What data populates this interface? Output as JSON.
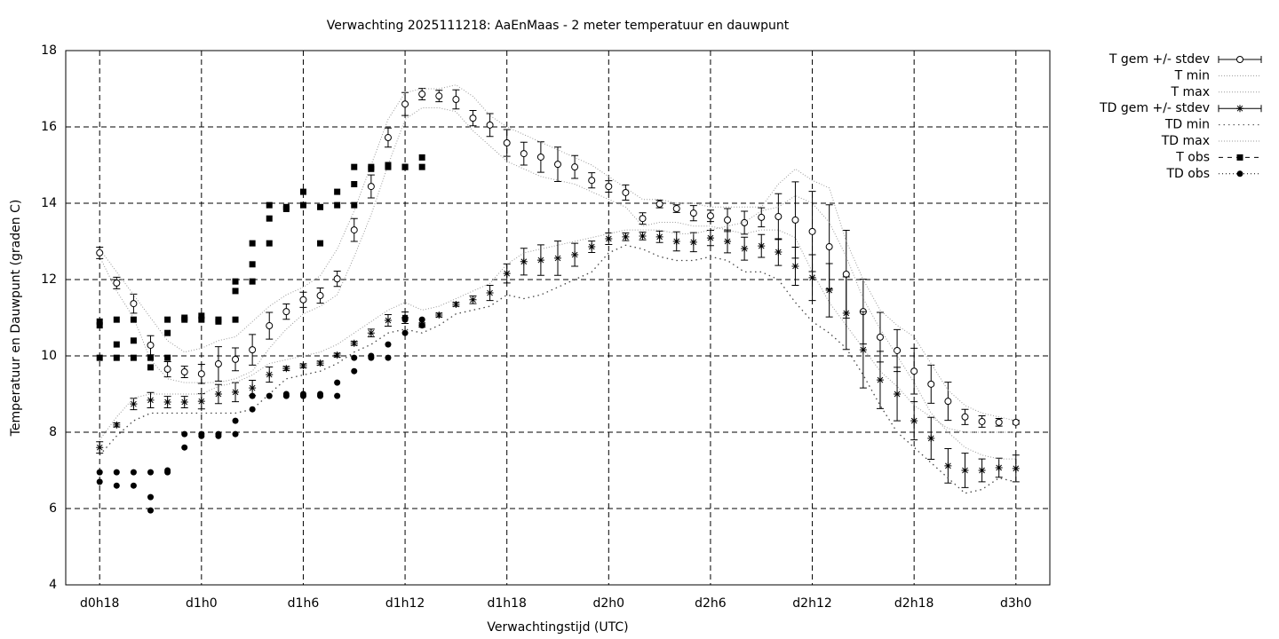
{
  "chart_data": {
    "type": "line",
    "title": "Verwachting 2025111218: AaEnMaas - 2 meter temperatuur en dauwpunt",
    "x_label": "Verwachtingstijd (UTC)",
    "y_label": "Temperatuur en Dauwpunt (graden C)",
    "xlim": [
      16,
      74
    ],
    "ylim": [
      4,
      18
    ],
    "xticks": [
      {
        "value": 18,
        "label": "d0h18"
      },
      {
        "value": 24,
        "label": "d1h0"
      },
      {
        "value": 30,
        "label": "d1h6"
      },
      {
        "value": 36,
        "label": "d1h12"
      },
      {
        "value": 42,
        "label": "d1h18"
      },
      {
        "value": 48,
        "label": "d2h0"
      },
      {
        "value": 54,
        "label": "d2h6"
      },
      {
        "value": 60,
        "label": "d2h12"
      },
      {
        "value": 66,
        "label": "d2h18"
      },
      {
        "value": 72,
        "label": "d3h0"
      }
    ],
    "yticks": [
      4,
      6,
      8,
      10,
      12,
      14,
      16,
      18
    ],
    "grid": true,
    "x": [
      18,
      19,
      20,
      21,
      22,
      23,
      24,
      25,
      26,
      27,
      28,
      29,
      30,
      31,
      32,
      33,
      34,
      35,
      36,
      37,
      38,
      39,
      40,
      41,
      42,
      43,
      44,
      45,
      46,
      47,
      48,
      49,
      50,
      51,
      52,
      53,
      54,
      55,
      56,
      57,
      58,
      59,
      60,
      61,
      62,
      63,
      64,
      65,
      66,
      67,
      68,
      69,
      70,
      71,
      72
    ],
    "series": [
      {
        "name": "T gem +/- stdev",
        "color": "#000000",
        "style": "errorbar-circle",
        "values": [
          12.7,
          11.91,
          11.37,
          10.28,
          9.65,
          9.58,
          9.53,
          9.79,
          9.91,
          10.16,
          10.79,
          11.16,
          11.47,
          11.58,
          12.02,
          13.3,
          14.44,
          15.72,
          16.6,
          16.86,
          16.81,
          16.72,
          16.23,
          16.05,
          15.58,
          15.3,
          15.21,
          15.02,
          14.95,
          14.6,
          14.44,
          14.28,
          13.6,
          13.98,
          13.86,
          13.74,
          13.67,
          13.56,
          13.49,
          13.63,
          13.65,
          13.56,
          13.26,
          12.86,
          12.14,
          11.16,
          10.49,
          10.14,
          9.6,
          9.26,
          8.81,
          8.4,
          8.28,
          8.26,
          8.26
        ],
        "errors": [
          0.15,
          0.15,
          0.25,
          0.25,
          0.2,
          0.15,
          0.25,
          0.45,
          0.3,
          0.4,
          0.35,
          0.2,
          0.2,
          0.2,
          0.2,
          0.3,
          0.3,
          0.25,
          0.3,
          0.15,
          0.15,
          0.25,
          0.2,
          0.3,
          0.35,
          0.3,
          0.4,
          0.45,
          0.3,
          0.2,
          0.15,
          0.2,
          0.15,
          0.1,
          0.1,
          0.2,
          0.15,
          0.3,
          0.3,
          0.25,
          0.6,
          1.0,
          1.05,
          1.1,
          1.15,
          0.85,
          0.65,
          0.55,
          0.6,
          0.5,
          0.5,
          0.2,
          0.15,
          0.1,
          0.05
        ]
      },
      {
        "name": "T min",
        "color": "#999999",
        "style": "dotted",
        "values": [
          12.6,
          11.7,
          11.0,
          9.9,
          9.4,
          9.3,
          9.3,
          9.3,
          9.4,
          9.6,
          10.2,
          10.7,
          11.1,
          11.3,
          11.6,
          12.6,
          13.7,
          15.0,
          16.2,
          16.5,
          16.5,
          16.4,
          15.9,
          15.5,
          15.1,
          14.9,
          14.7,
          14.6,
          14.5,
          14.3,
          14.1,
          13.9,
          13.4,
          13.5,
          13.5,
          13.4,
          13.4,
          13.3,
          13.2,
          13.3,
          13.3,
          13.1,
          12.2,
          11.4,
          10.8,
          10.2,
          9.6,
          9.2,
          8.7,
          8.4,
          8.1,
          8.0,
          8.0,
          8.0,
          8.0
        ]
      },
      {
        "name": "T max",
        "color": "#999999",
        "style": "dotted",
        "values": [
          12.8,
          12.2,
          11.6,
          11.0,
          10.4,
          10.1,
          10.2,
          10.4,
          10.5,
          10.9,
          11.3,
          11.6,
          11.8,
          12.1,
          12.8,
          13.8,
          15.0,
          16.2,
          16.9,
          17.0,
          17.0,
          17.1,
          16.8,
          16.3,
          16.0,
          15.8,
          15.6,
          15.4,
          15.2,
          15.0,
          14.7,
          14.4,
          14.1,
          14.1,
          14.0,
          14.0,
          13.9,
          13.9,
          13.9,
          13.9,
          14.5,
          14.9,
          14.6,
          14.4,
          13.0,
          12.0,
          11.2,
          10.8,
          10.5,
          9.8,
          9.1,
          8.7,
          8.5,
          8.4,
          8.3
        ]
      },
      {
        "name": "TD gem +/- stdev",
        "color": "#000000",
        "style": "errorbar-star",
        "values": [
          7.6,
          8.19,
          8.74,
          8.84,
          8.79,
          8.79,
          8.81,
          9.0,
          9.05,
          9.16,
          9.51,
          9.67,
          9.74,
          9.81,
          10.02,
          10.33,
          10.6,
          10.93,
          11.0,
          10.81,
          11.07,
          11.35,
          11.47,
          11.65,
          12.16,
          12.47,
          12.51,
          12.56,
          12.65,
          12.86,
          13.07,
          13.12,
          13.14,
          13.12,
          13.0,
          12.98,
          13.09,
          13.0,
          12.81,
          12.88,
          12.72,
          12.35,
          12.05,
          11.72,
          11.12,
          10.16,
          9.37,
          9.0,
          8.3,
          7.84,
          7.12,
          7.0,
          7.0,
          7.07,
          7.05
        ],
        "errors": [
          0.15,
          0.05,
          0.15,
          0.2,
          0.15,
          0.15,
          0.2,
          0.25,
          0.25,
          0.2,
          0.2,
          0.05,
          0.05,
          0.05,
          0.05,
          0.05,
          0.1,
          0.15,
          0.15,
          0.05,
          0.05,
          0.05,
          0.1,
          0.2,
          0.25,
          0.35,
          0.4,
          0.45,
          0.3,
          0.15,
          0.15,
          0.1,
          0.1,
          0.15,
          0.25,
          0.25,
          0.2,
          0.3,
          0.3,
          0.3,
          0.35,
          0.5,
          0.6,
          0.7,
          0.95,
          1.0,
          0.75,
          0.7,
          0.5,
          0.55,
          0.45,
          0.45,
          0.3,
          0.25,
          0.35
        ]
      },
      {
        "name": "TD min",
        "color": "#444444",
        "style": "sparse-dotted",
        "values": [
          7.4,
          7.9,
          8.3,
          8.5,
          8.5,
          8.5,
          8.5,
          8.5,
          8.5,
          8.6,
          9.0,
          9.4,
          9.5,
          9.6,
          9.8,
          10.1,
          10.3,
          10.6,
          10.7,
          10.6,
          10.8,
          11.1,
          11.2,
          11.3,
          11.6,
          11.5,
          11.6,
          11.8,
          12.0,
          12.2,
          12.7,
          12.9,
          12.8,
          12.6,
          12.5,
          12.5,
          12.6,
          12.5,
          12.2,
          12.2,
          12.0,
          11.4,
          10.9,
          10.6,
          10.2,
          9.5,
          8.7,
          8.0,
          7.6,
          7.2,
          6.8,
          6.4,
          6.5,
          6.8,
          6.7
        ]
      },
      {
        "name": "TD max",
        "color": "#999999",
        "style": "dotted",
        "values": [
          7.8,
          8.4,
          8.9,
          9.0,
          9.0,
          9.0,
          9.0,
          9.2,
          9.3,
          9.5,
          9.8,
          9.9,
          10.0,
          10.1,
          10.3,
          10.6,
          10.9,
          11.2,
          11.4,
          11.2,
          11.3,
          11.5,
          11.7,
          11.9,
          12.4,
          12.7,
          12.8,
          12.9,
          13.0,
          13.1,
          13.2,
          13.3,
          13.3,
          13.3,
          13.2,
          13.2,
          13.3,
          13.4,
          13.5,
          13.8,
          13.9,
          14.2,
          14.0,
          13.5,
          12.6,
          11.5,
          10.7,
          10.0,
          9.3,
          8.5,
          8.0,
          7.6,
          7.4,
          7.3,
          7.3
        ]
      },
      {
        "name": "T obs",
        "color": "#000000",
        "style": "square",
        "x": [
          18,
          18,
          18,
          19,
          19,
          19,
          20,
          20,
          20,
          21,
          21,
          22,
          22,
          22,
          23,
          23,
          24,
          24,
          25,
          25,
          26,
          26,
          26,
          27,
          27,
          27,
          28,
          28,
          28,
          29,
          29,
          30,
          30,
          31,
          31,
          32,
          32,
          33,
          33,
          33,
          34,
          34,
          35,
          35,
          36,
          36,
          37,
          37
        ],
        "values": [
          10.9,
          10.8,
          9.95,
          10.95,
          10.3,
          9.95,
          10.95,
          10.4,
          9.95,
          9.95,
          9.7,
          10.95,
          10.6,
          9.95,
          11.0,
          10.95,
          11.05,
          10.95,
          10.95,
          10.9,
          11.95,
          11.7,
          10.95,
          12.95,
          12.4,
          11.95,
          13.95,
          13.6,
          12.95,
          13.9,
          13.85,
          14.3,
          13.95,
          13.9,
          12.95,
          14.3,
          13.95,
          14.95,
          14.5,
          13.95,
          14.95,
          14.9,
          14.95,
          15.0,
          14.95,
          14.95,
          15.2,
          14.95
        ]
      },
      {
        "name": "TD obs",
        "color": "#000000",
        "style": "dot",
        "x": [
          18,
          18,
          19,
          19,
          20,
          20,
          21,
          21,
          21,
          22,
          22,
          23,
          23,
          24,
          24,
          25,
          25,
          26,
          26,
          27,
          27,
          28,
          29,
          29,
          30,
          30,
          31,
          31,
          32,
          32,
          33,
          33,
          34,
          34,
          35,
          35,
          36,
          36,
          36,
          37,
          37
        ],
        "values": [
          6.95,
          6.7,
          6.95,
          6.6,
          6.95,
          6.6,
          6.95,
          6.3,
          5.95,
          6.95,
          7.0,
          7.95,
          7.6,
          7.95,
          7.9,
          7.95,
          7.9,
          8.3,
          7.95,
          8.95,
          8.6,
          8.95,
          8.95,
          9.0,
          8.95,
          9.0,
          8.95,
          9.0,
          9.3,
          8.95,
          9.95,
          9.6,
          9.95,
          10.0,
          10.3,
          9.95,
          10.95,
          11.0,
          10.6,
          10.95,
          10.8
        ]
      }
    ]
  }
}
